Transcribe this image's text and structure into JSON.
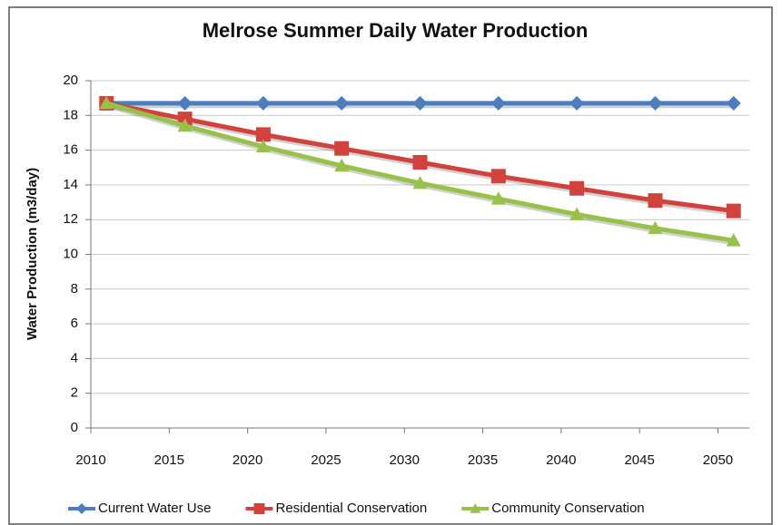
{
  "chart_data": {
    "type": "line",
    "title": "Melrose Summer Daily Water Production",
    "y_label": "Water Production (m3/day)",
    "x": [
      2011,
      2016,
      2021,
      2026,
      2031,
      2036,
      2041,
      2046,
      2051
    ],
    "xlim": [
      2010,
      2052
    ],
    "xticks": [
      2010,
      2015,
      2020,
      2025,
      2030,
      2035,
      2040,
      2045,
      2050
    ],
    "ylim": [
      0,
      20
    ],
    "yticks": [
      0,
      2,
      4,
      6,
      8,
      10,
      12,
      14,
      16,
      18,
      20
    ],
    "grid": true,
    "legend": "bottom",
    "series": [
      {
        "name": "Current Water Use",
        "color": "#4a7ebf",
        "marker": "diamond",
        "values": [
          18.7,
          18.7,
          18.7,
          18.7,
          18.7,
          18.7,
          18.7,
          18.7,
          18.7
        ]
      },
      {
        "name": "Residential Conservation",
        "color": "#d2423d",
        "marker": "square",
        "values": [
          18.7,
          17.8,
          16.9,
          16.1,
          15.3,
          14.5,
          13.8,
          13.1,
          12.5
        ]
      },
      {
        "name": "Community Conservation",
        "color": "#98c14a",
        "marker": "triangle",
        "values": [
          18.7,
          17.4,
          16.2,
          15.1,
          14.1,
          13.2,
          12.3,
          11.5,
          10.8
        ]
      }
    ]
  }
}
